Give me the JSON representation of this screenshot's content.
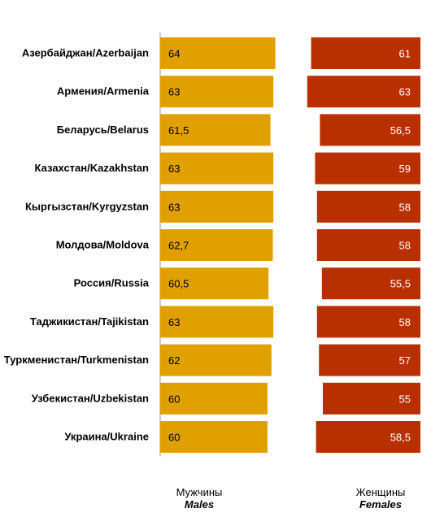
{
  "chart_data": {
    "type": "bar",
    "categories": [
      "Азербайджан/Azerbaijan",
      "Армения/Armenia",
      "Беларусь/Belarus",
      "Казахстан/Kazakhstan",
      "Кыргызстан/Kyrgyzstan",
      "Молдова/Moldova",
      "Россия/Russia",
      "Таджикистан/Tajikistan",
      "Туркменистан/Turkmenistan",
      "Узбекистан/Uzbekistan",
      "Украина/Ukraine"
    ],
    "series": [
      {
        "name": "Мужчины Males",
        "labels": [
          "64",
          "63",
          "61,5",
          "63",
          "63",
          "62,7",
          "60,5",
          "63",
          "62",
          "60",
          "60"
        ],
        "values": [
          64,
          63,
          61.5,
          63,
          63,
          62.7,
          60.5,
          63,
          62,
          60,
          60
        ],
        "color": "#E0A000"
      },
      {
        "name": "Женщины Females",
        "labels": [
          "61",
          "63",
          "56,5",
          "59",
          "58",
          "58",
          "55,5",
          "58",
          "57",
          "55",
          "58,5"
        ],
        "values": [
          61,
          63,
          56.5,
          59,
          58,
          58,
          55.5,
          58,
          57,
          55,
          58.5
        ],
        "color": "#B83000"
      }
    ]
  },
  "legend": {
    "males_ru": "Мужчины",
    "males_en": "Males",
    "females_ru": "Женщины",
    "females_en": "Females"
  }
}
